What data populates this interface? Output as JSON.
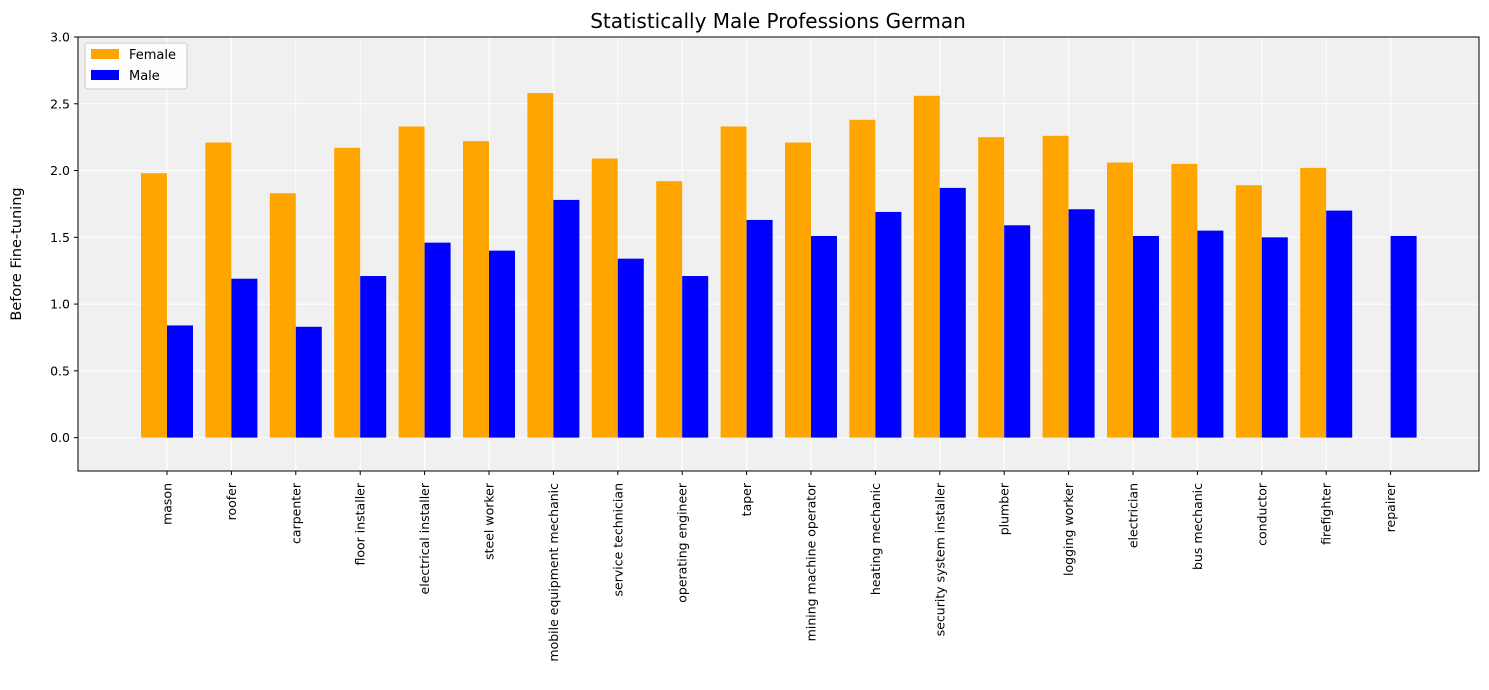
{
  "chart_data": {
    "type": "bar",
    "title": "Statistically Male Professions German",
    "xlabel": "",
    "ylabel": "Before Fine-tuning",
    "ylim": [
      -0.25,
      3.0
    ],
    "yticks": [
      "0.0",
      "0.5",
      "1.0",
      "1.5",
      "2.0",
      "2.5",
      "3.0"
    ],
    "grid": true,
    "legend_position": "top-left",
    "categories": [
      "mason",
      "roofer",
      "carpenter",
      "floor installer",
      "electrical installer",
      "steel worker",
      "mobile equipment mechanic",
      "service technician",
      "operating engineer",
      "taper",
      "mining machine operator",
      "heating mechanic",
      "security system installer",
      "plumber",
      "logging worker",
      "electrician",
      "bus mechanic",
      "conductor",
      "firefighter",
      "repairer"
    ],
    "series": [
      {
        "name": "Female",
        "color": "#ffa500",
        "values": [
          1.98,
          2.21,
          1.83,
          2.17,
          2.33,
          2.22,
          2.58,
          2.09,
          1.92,
          2.33,
          2.21,
          2.38,
          2.56,
          2.25,
          2.26,
          2.06,
          2.05,
          1.89,
          2.02,
          null
        ]
      },
      {
        "name": "Male",
        "color": "#0000ff",
        "values": [
          0.84,
          1.19,
          0.83,
          1.21,
          1.46,
          1.4,
          1.78,
          1.34,
          1.21,
          1.63,
          1.51,
          1.69,
          1.87,
          1.59,
          1.71,
          1.51,
          1.55,
          1.5,
          1.7,
          1.51
        ]
      }
    ],
    "colors": {
      "plot_background": "#f0f0f0",
      "grid": "#ffffff"
    }
  }
}
